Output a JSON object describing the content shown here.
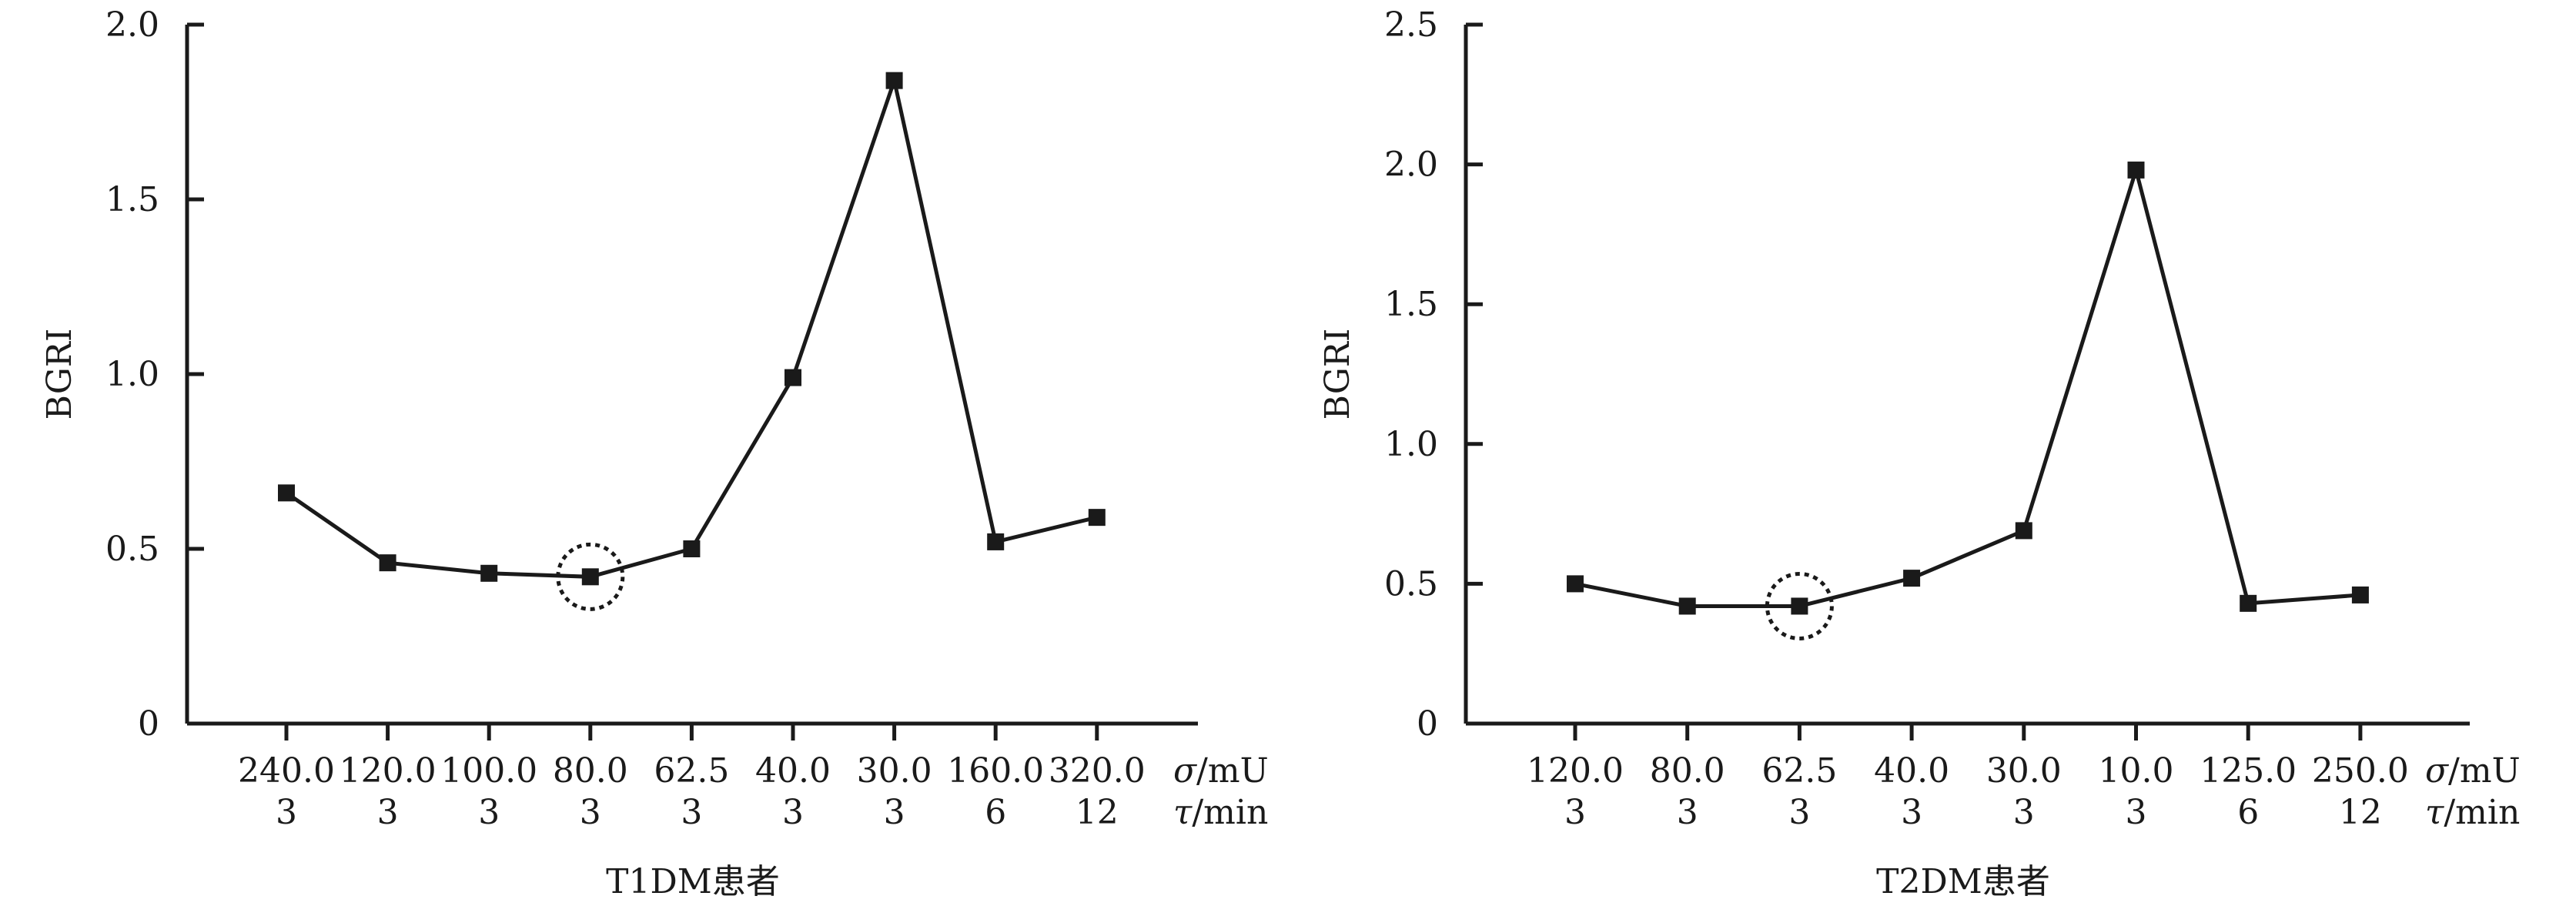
{
  "chart_data": [
    {
      "type": "line",
      "ylabel": "BGRI",
      "xlabel": "T1DM患者",
      "ylim": [
        0,
        2.0
      ],
      "yticks": [
        "0",
        "0.5",
        "1.0",
        "1.5",
        "2.0"
      ],
      "row_units": [
        {
          "var": "σ",
          "unit": "/mU"
        },
        {
          "var": "τ",
          "unit": "/min"
        }
      ],
      "categories": [
        {
          "sigma": "240.0",
          "tau": "3"
        },
        {
          "sigma": "120.0",
          "tau": "3"
        },
        {
          "sigma": "100.0",
          "tau": "3"
        },
        {
          "sigma": "80.0",
          "tau": "3"
        },
        {
          "sigma": "62.5",
          "tau": "3"
        },
        {
          "sigma": "40.0",
          "tau": "3"
        },
        {
          "sigma": "30.0",
          "tau": "3"
        },
        {
          "sigma": "160.0",
          "tau": "6"
        },
        {
          "sigma": "320.0",
          "tau": "12"
        }
      ],
      "values": [
        0.66,
        0.46,
        0.43,
        0.42,
        0.5,
        0.99,
        1.84,
        0.52,
        0.59
      ],
      "highlight_index": 3,
      "grid": false
    },
    {
      "type": "line",
      "ylabel": "BGRI",
      "xlabel": "T2DM患者",
      "ylim": [
        0,
        2.5
      ],
      "yticks": [
        "0",
        "0.5",
        "1.0",
        "1.5",
        "2.0",
        "2.5"
      ],
      "row_units": [
        {
          "var": "σ",
          "unit": "/mU"
        },
        {
          "var": "τ",
          "unit": "/min"
        }
      ],
      "categories": [
        {
          "sigma": "120.0",
          "tau": "3"
        },
        {
          "sigma": "80.0",
          "tau": "3"
        },
        {
          "sigma": "62.5",
          "tau": "3"
        },
        {
          "sigma": "40.0",
          "tau": "3"
        },
        {
          "sigma": "30.0",
          "tau": "3"
        },
        {
          "sigma": "10.0",
          "tau": "3"
        },
        {
          "sigma": "125.0",
          "tau": "6"
        },
        {
          "sigma": "250.0",
          "tau": "12"
        }
      ],
      "values": [
        0.5,
        0.42,
        0.42,
        0.52,
        0.69,
        1.98,
        0.43,
        0.46
      ],
      "highlight_index": 2,
      "grid": false
    }
  ]
}
